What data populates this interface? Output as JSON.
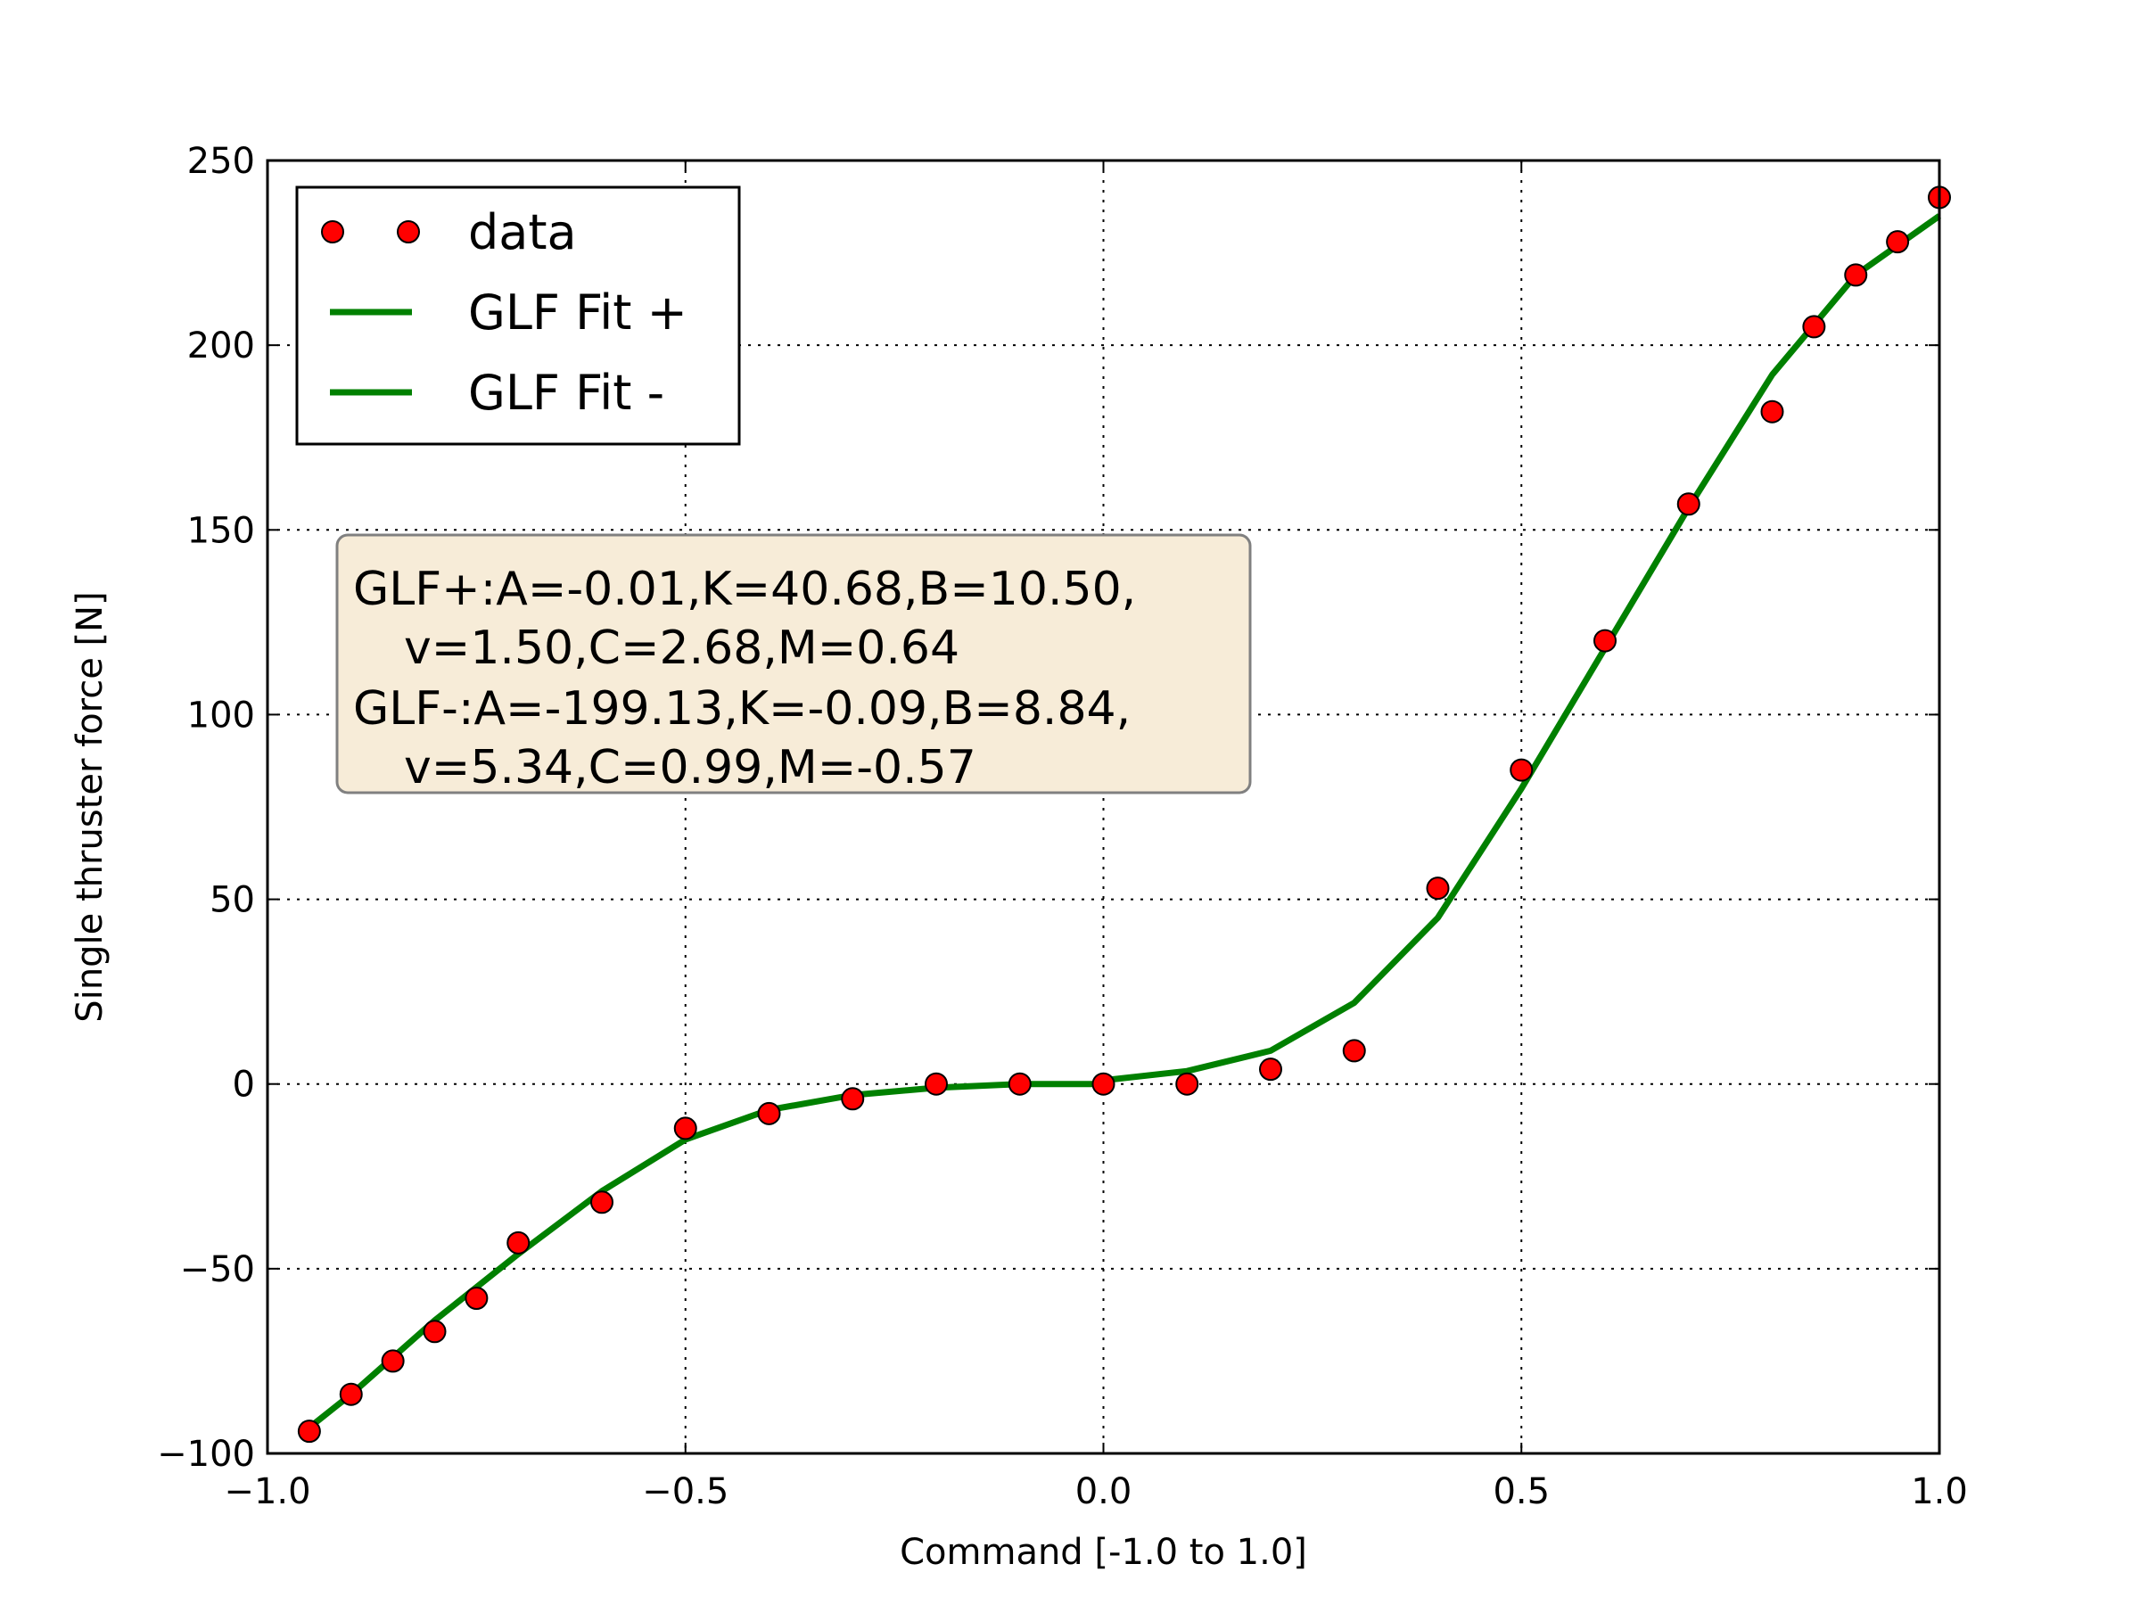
{
  "chart_data": {
    "type": "scatter",
    "xlabel": "Command [-1.0 to 1.0]",
    "ylabel": "Single thruster force [N]",
    "xlim": [
      -1.0,
      1.0
    ],
    "ylim": [
      -100,
      250
    ],
    "xticks": [
      -1.0,
      -0.5,
      0.0,
      0.5,
      1.0
    ],
    "xtick_labels": [
      "−1.0",
      "−0.5",
      "0.0",
      "0.5",
      "1.0"
    ],
    "yticks": [
      -100,
      -50,
      0,
      50,
      100,
      150,
      200,
      250
    ],
    "ytick_labels": [
      "−100",
      "−50",
      "0",
      "50",
      "100",
      "150",
      "200",
      "250"
    ],
    "grid": true,
    "legend": {
      "placement": "top-left",
      "entries": [
        "data",
        "GLF Fit +",
        "GLF Fit -"
      ]
    },
    "annotation": {
      "lines": [
        "GLF+:A=-0.01,K=40.68,B=10.50,",
        "v=1.50,C=2.68,M=0.64",
        "GLF-:A=-199.13,K=-0.09,B=8.84,",
        "v=5.34,C=0.99,M=-0.57"
      ],
      "indented": [
        false,
        true,
        false,
        true
      ]
    },
    "colors": {
      "data_marker": "#ff0000",
      "fit_line": "#008000",
      "annotation_bg": "#f7ecd8",
      "annotation_border": "#808080"
    },
    "series": [
      {
        "name": "data",
        "kind": "points",
        "x": [
          -0.95,
          -0.9,
          -0.85,
          -0.8,
          -0.75,
          -0.7,
          -0.6,
          -0.5,
          -0.4,
          -0.3,
          -0.2,
          -0.1,
          0.0,
          0.1,
          0.2,
          0.3,
          0.4,
          0.5,
          0.6,
          0.7,
          0.8,
          0.85,
          0.9,
          0.95,
          1.0
        ],
        "y": [
          -94,
          -84,
          -75,
          -67,
          -58,
          -43,
          -32,
          -12,
          -8,
          -4,
          0,
          0,
          0,
          0,
          4,
          9,
          53,
          85,
          120,
          157,
          182,
          205,
          219,
          228,
          240
        ]
      },
      {
        "name": "GLF Fit +",
        "kind": "line",
        "x": [
          0.0,
          0.1,
          0.2,
          0.3,
          0.4,
          0.5,
          0.6,
          0.7,
          0.8,
          0.9,
          1.0
        ],
        "y": [
          1,
          3.5,
          9,
          22,
          45,
          80,
          118,
          156,
          192,
          219,
          235
        ]
      },
      {
        "name": "GLF Fit -",
        "kind": "line",
        "x": [
          -0.95,
          -0.9,
          -0.8,
          -0.7,
          -0.6,
          -0.5,
          -0.4,
          -0.3,
          -0.2,
          -0.1,
          0.0
        ],
        "y": [
          -93,
          -84,
          -64,
          -46,
          -29,
          -15,
          -7,
          -3,
          -1,
          0,
          0
        ]
      }
    ]
  }
}
